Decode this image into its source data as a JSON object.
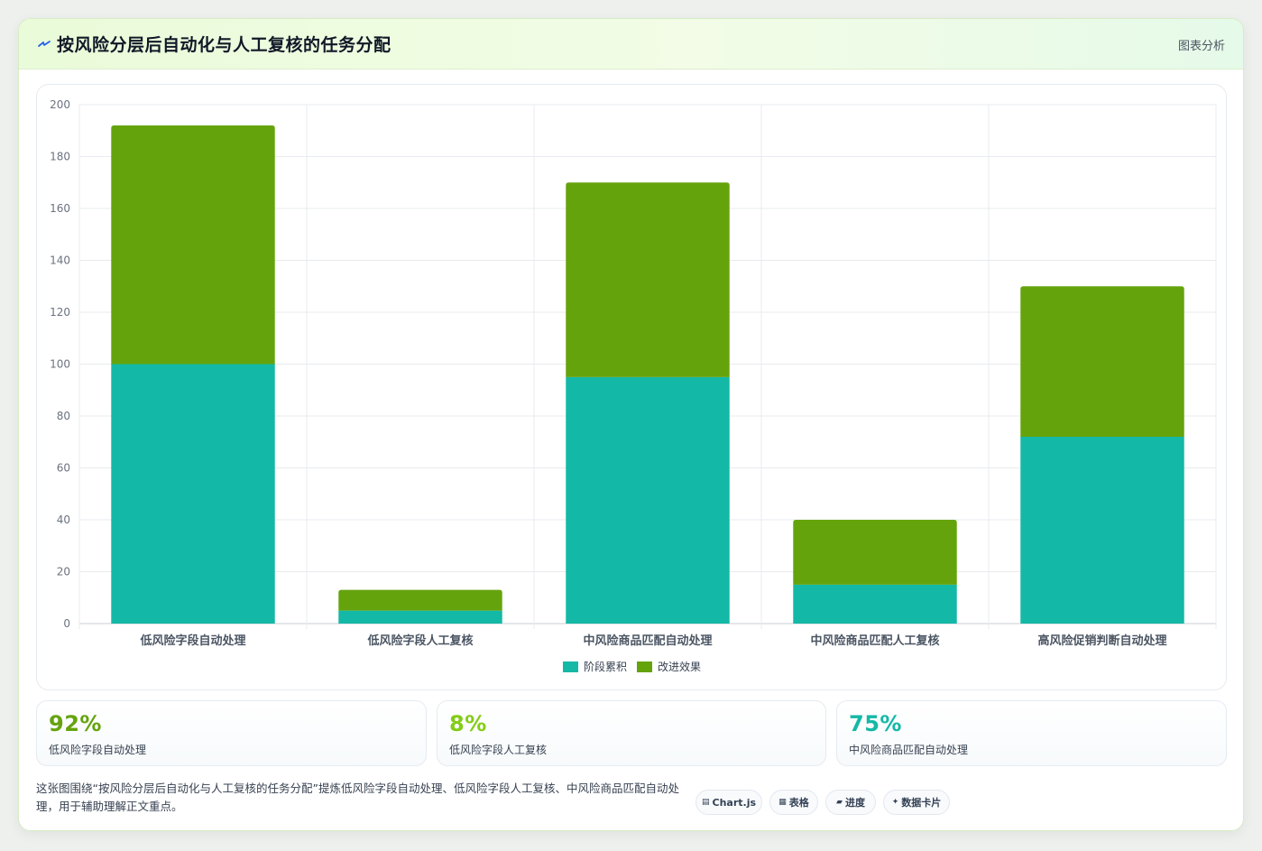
{
  "header": {
    "title": "按风险分层后自动化与人工复核的任务分配",
    "action_label": "图表分析"
  },
  "chart_data": {
    "type": "bar",
    "stacked": true,
    "categories": [
      "低风险字段自动处理",
      "低风险字段人工复核",
      "中风险商品匹配自动处理",
      "中风险商品匹配人工复核",
      "高风险促销判断自动处理"
    ],
    "series": [
      {
        "name": "阶段累积",
        "color": "#14b8a6",
        "values": [
          100,
          5,
          95,
          15,
          72
        ]
      },
      {
        "name": "改进效果",
        "color": "#65a30d",
        "values": [
          92,
          8,
          75,
          25,
          58
        ]
      }
    ],
    "ylim": [
      0,
      200
    ],
    "yticks": [
      0,
      20,
      40,
      60,
      80,
      100,
      120,
      140,
      160,
      180,
      200
    ],
    "grid": true,
    "legend_position": "bottom"
  },
  "stats": [
    {
      "value": "92%",
      "label": "低风险字段自动处理",
      "color": "#65a30d"
    },
    {
      "value": "8%",
      "label": "低风险字段人工复核",
      "color": "#84cc16"
    },
    {
      "value": "75%",
      "label": "中风险商品匹配自动处理",
      "color": "#14b8a6"
    }
  ],
  "footer": {
    "text": "这张图围绕“按风险分层后自动化与人工复核的任务分配”提炼低风险字段自动处理、低风险字段人工复核、中风险商品匹配自动处理，用于辅助理解正文重点。"
  },
  "pills": [
    {
      "icon": "▤",
      "label": "Chart.js"
    },
    {
      "icon": "▦",
      "label": "表格"
    },
    {
      "icon": "▰",
      "label": "进度"
    },
    {
      "icon": "✦",
      "label": "数据卡片"
    }
  ]
}
